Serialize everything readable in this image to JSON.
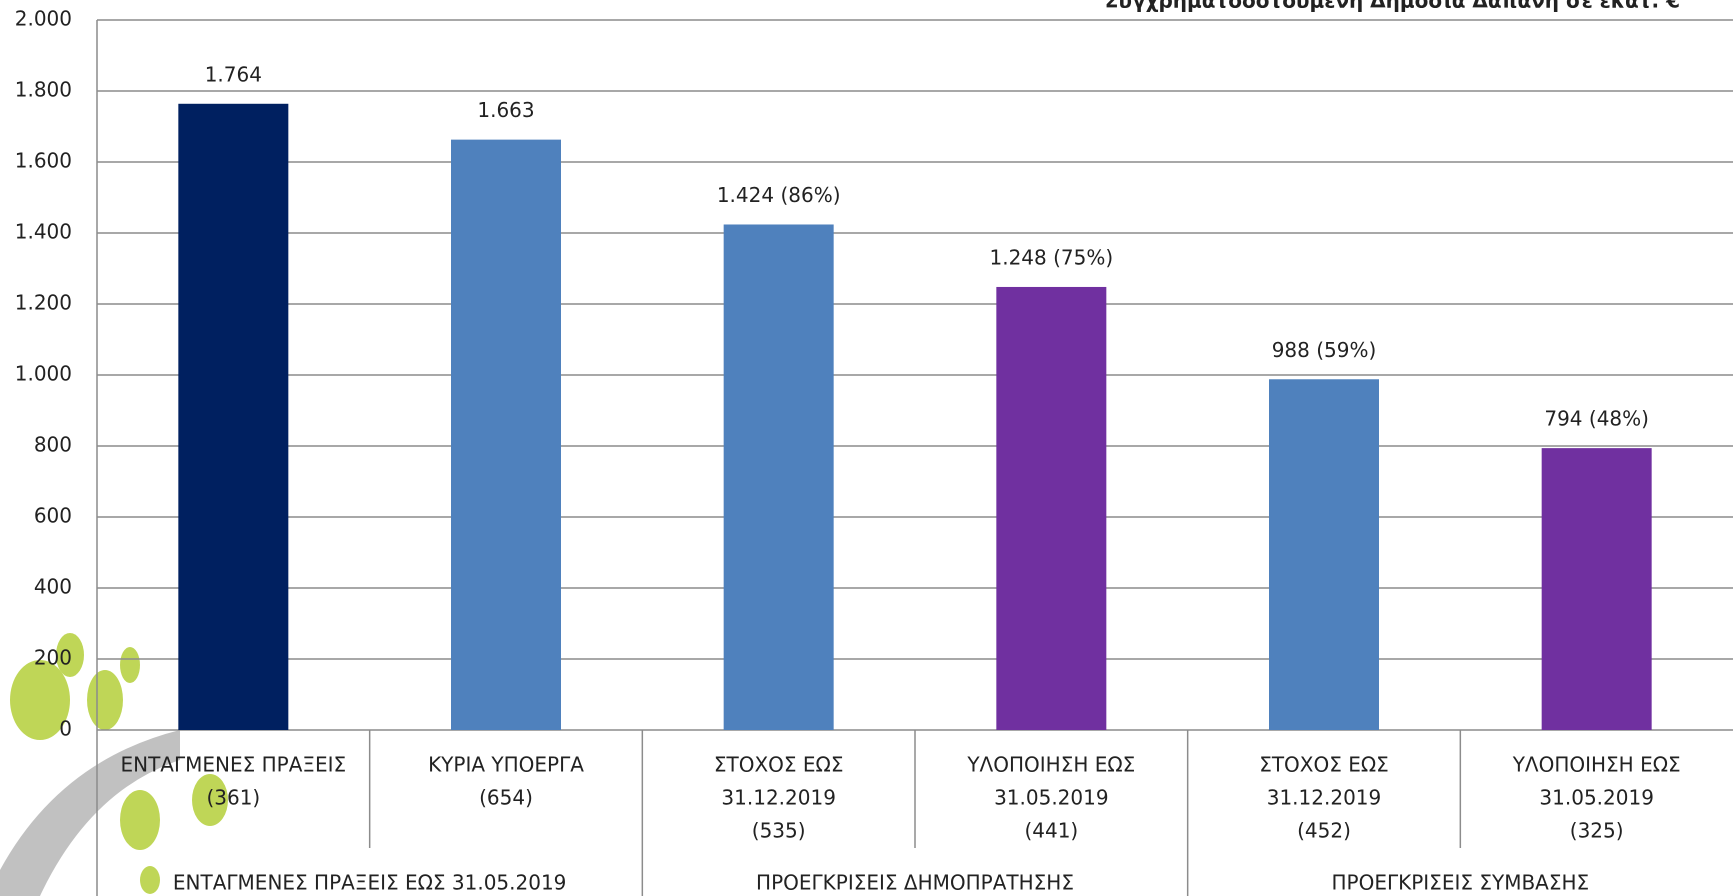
{
  "chart_data": {
    "type": "bar",
    "title": "Συγχρηματοδοτούμενη Δημόσια Δαπάνη σε εκατ. €",
    "categories": [
      [
        "ΕΝΤΑΓΜΕΝΕΣ ΠΡΑΞΕΙΣ",
        "(361)"
      ],
      [
        "ΚΥΡΙΑ ΥΠΟΕΡΓΑ",
        "(654)"
      ],
      [
        "ΣΤΟΧΟΣ ΕΩΣ",
        "31.12.2019",
        "(535)"
      ],
      [
        "ΥΛΟΠΟΙΗΣΗ ΕΩΣ",
        "31.05.2019",
        "(441)"
      ],
      [
        "ΣΤΟΧΟΣ ΕΩΣ",
        "31.12.2019",
        "(452)"
      ],
      [
        "ΥΛΟΠΟΙΗΣΗ ΕΩΣ",
        "31.05.2019",
        "(325)"
      ]
    ],
    "groups": [
      "ΕΝΤΑΓΜΕΝΕΣ ΠΡΑΞΕΙΣ ΕΩΣ 31.05.2019",
      "ΠΡΟΕΓΚΡΙΣΕΙΣ ΔΗΜΟΠΡΑΤΗΣΗΣ",
      "ΠΡΟΕΓΚΡΙΣΕΙΣ ΣΥΜΒΑΣΗΣ"
    ],
    "values": [
      1764,
      1663,
      1424,
      1248,
      988,
      794
    ],
    "value_labels": [
      "1.764",
      "1.663",
      "1.424 (86%)",
      "1.248 (75%)",
      "988 (59%)",
      "794 (48%)"
    ],
    "colors": [
      "#002060",
      "#4f81bd",
      "#4f81bd",
      "#7030a0",
      "#4f81bd",
      "#7030a0"
    ],
    "ylim": [
      0,
      2000
    ],
    "yticks": [
      0,
      200,
      400,
      600,
      800,
      {
        "value": 1000,
        "label": "1.000"
      },
      {
        "value": 1200,
        "label": "1.200"
      },
      {
        "value": 1400,
        "label": "1.400"
      },
      {
        "value": 1600,
        "label": "1.600"
      },
      {
        "value": 1800,
        "label": "1.800"
      },
      {
        "value": 2000,
        "label": "2.000"
      }
    ],
    "grid": true
  }
}
